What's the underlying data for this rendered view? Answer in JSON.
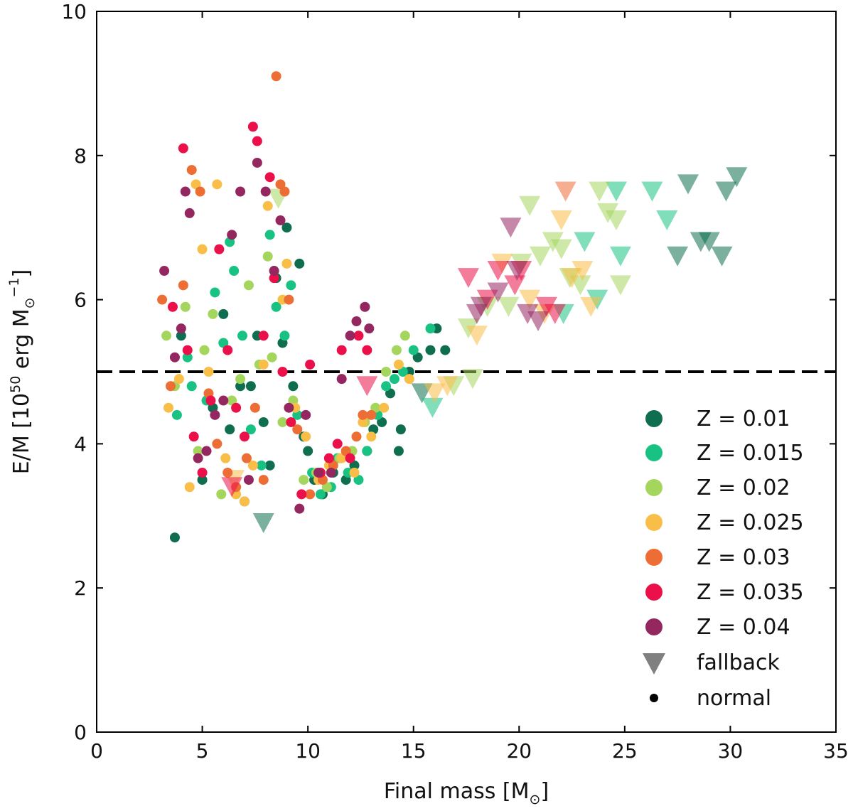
{
  "chart_data": {
    "type": "scatter",
    "title": "",
    "xlabel": {
      "main": "Final mass [M",
      "sub": "⊙",
      "close": "]"
    },
    "ylabel": {
      "pre": "E/M [10",
      "sup1": "50",
      "mid": " erg M",
      "sub": "⊙",
      "sup2": "−1",
      "close": "]"
    },
    "xlim": [
      0,
      35
    ],
    "ylim": [
      0,
      10
    ],
    "xticks": [
      0,
      5,
      10,
      15,
      20,
      25,
      30,
      35
    ],
    "yticks": [
      0,
      2,
      4,
      6,
      8,
      10
    ],
    "hline": {
      "y": 5.0,
      "style": "dashed",
      "color": "#000000"
    },
    "legend_position": "lower-right",
    "series": [
      {
        "name": "Z = 0.01",
        "color": "#0e6e4f",
        "normal": [
          [
            3.7,
            2.7
          ],
          [
            4.0,
            5.5
          ],
          [
            5.0,
            3.5
          ],
          [
            5.5,
            4.5
          ],
          [
            6.0,
            5.8
          ],
          [
            6.3,
            4.2
          ],
          [
            6.8,
            4.8
          ],
          [
            7.0,
            3.2
          ],
          [
            7.3,
            4.8
          ],
          [
            7.6,
            5.5
          ],
          [
            7.9,
            4.3
          ],
          [
            8.2,
            3.7
          ],
          [
            8.5,
            6.3
          ],
          [
            8.8,
            5.4
          ],
          [
            9.0,
            7.0
          ],
          [
            9.3,
            4.8
          ],
          [
            9.6,
            6.5
          ],
          [
            9.8,
            4.1
          ],
          [
            10.0,
            3.9
          ],
          [
            10.3,
            3.5
          ],
          [
            10.7,
            3.3
          ],
          [
            11.2,
            3.6
          ],
          [
            11.8,
            3.5
          ],
          [
            12.2,
            3.7
          ],
          [
            12.8,
            3.9
          ],
          [
            13.1,
            4.2
          ],
          [
            13.5,
            4.3
          ],
          [
            13.9,
            4.7
          ],
          [
            14.3,
            3.9
          ],
          [
            14.4,
            4.2
          ],
          [
            14.8,
            5.0
          ],
          [
            15.2,
            5.2
          ],
          [
            15.8,
            5.3
          ],
          [
            16.1,
            5.6
          ],
          [
            16.5,
            5.3
          ]
        ],
        "fallback": [
          [
            7.9,
            2.9
          ],
          [
            15.4,
            4.7
          ],
          [
            27.5,
            6.6
          ],
          [
            28.0,
            7.6
          ],
          [
            28.6,
            6.8
          ],
          [
            29.0,
            6.8
          ],
          [
            29.6,
            6.6
          ],
          [
            29.8,
            7.5
          ],
          [
            30.3,
            7.7
          ]
        ]
      },
      {
        "name": "Z = 0.015",
        "color": "#17c282",
        "normal": [
          [
            3.8,
            4.4
          ],
          [
            4.3,
            5.2
          ],
          [
            4.5,
            4.8
          ],
          [
            5.2,
            4.6
          ],
          [
            5.6,
            6.1
          ],
          [
            6.0,
            5.4
          ],
          [
            6.3,
            6.8
          ],
          [
            6.5,
            6.4
          ],
          [
            6.9,
            5.5
          ],
          [
            7.3,
            4.2
          ],
          [
            7.8,
            3.7
          ],
          [
            8.2,
            6.9
          ],
          [
            8.5,
            5.9
          ],
          [
            8.9,
            5.5
          ],
          [
            9.2,
            6.2
          ],
          [
            9.5,
            4.4
          ],
          [
            10.2,
            3.6
          ],
          [
            10.6,
            3.3
          ],
          [
            11.1,
            3.4
          ],
          [
            11.4,
            3.8
          ],
          [
            11.9,
            3.6
          ],
          [
            12.4,
            3.5
          ],
          [
            12.8,
            3.9
          ],
          [
            13.3,
            4.4
          ],
          [
            13.7,
            4.8
          ],
          [
            14.1,
            4.9
          ],
          [
            14.5,
            5.0
          ],
          [
            15.0,
            5.3
          ],
          [
            15.8,
            5.6
          ]
        ],
        "fallback": [
          [
            15.9,
            4.5
          ],
          [
            23.1,
            6.8
          ],
          [
            23.7,
            6.0
          ],
          [
            24.6,
            7.5
          ],
          [
            24.8,
            6.6
          ],
          [
            26.3,
            7.5
          ],
          [
            27.0,
            7.1
          ],
          [
            22.1,
            5.8
          ]
        ]
      },
      {
        "name": "Z = 0.02",
        "color": "#a4d65e",
        "normal": [
          [
            3.3,
            5.5
          ],
          [
            3.7,
            4.8
          ],
          [
            4.2,
            5.9
          ],
          [
            4.8,
            3.9
          ],
          [
            5.1,
            5.3
          ],
          [
            5.5,
            5.8
          ],
          [
            5.9,
            3.3
          ],
          [
            6.4,
            4.6
          ],
          [
            6.8,
            4.9
          ],
          [
            7.2,
            6.2
          ],
          [
            7.7,
            5.1
          ],
          [
            8.1,
            6.6
          ],
          [
            8.3,
            5.2
          ],
          [
            8.8,
            4.3
          ],
          [
            9.3,
            4.6
          ],
          [
            9.8,
            3.5
          ],
          [
            10.4,
            3.6
          ],
          [
            10.9,
            3.4
          ],
          [
            11.5,
            3.8
          ],
          [
            12.1,
            3.9
          ],
          [
            12.7,
            4.3
          ],
          [
            13.2,
            4.5
          ],
          [
            13.7,
            5.0
          ],
          [
            14.2,
            5.3
          ],
          [
            14.6,
            5.5
          ]
        ],
        "fallback": [
          [
            8.6,
            7.4
          ],
          [
            17.6,
            5.6
          ],
          [
            17.8,
            4.9
          ],
          [
            18.5,
            5.9
          ],
          [
            19.5,
            5.9
          ],
          [
            20.1,
            6.5
          ],
          [
            20.5,
            7.3
          ],
          [
            21.0,
            6.6
          ],
          [
            21.6,
            6.8
          ],
          [
            22.0,
            6.7
          ],
          [
            22.4,
            6.3
          ],
          [
            22.9,
            6.2
          ],
          [
            23.8,
            7.5
          ],
          [
            24.2,
            7.2
          ],
          [
            24.6,
            7.1
          ],
          [
            24.8,
            6.2
          ],
          [
            16.9,
            4.8
          ]
        ]
      },
      {
        "name": "Z = 0.025",
        "color": "#f9be47",
        "normal": [
          [
            3.4,
            4.5
          ],
          [
            3.9,
            4.9
          ],
          [
            4.4,
            3.4
          ],
          [
            4.7,
            7.6
          ],
          [
            5.0,
            6.7
          ],
          [
            5.3,
            5.0
          ],
          [
            5.7,
            7.6
          ],
          [
            6.1,
            3.8
          ],
          [
            6.6,
            3.3
          ],
          [
            7.0,
            3.2
          ],
          [
            7.4,
            3.7
          ],
          [
            7.9,
            5.1
          ],
          [
            8.1,
            7.3
          ],
          [
            8.4,
            6.4
          ],
          [
            8.8,
            6.0
          ],
          [
            9.0,
            6.5
          ],
          [
            9.4,
            4.5
          ],
          [
            9.9,
            4.1
          ],
          [
            10.5,
            3.5
          ],
          [
            11.0,
            3.7
          ],
          [
            11.6,
            3.8
          ],
          [
            12.2,
            3.6
          ],
          [
            12.6,
            4.3
          ],
          [
            13.0,
            4.1
          ],
          [
            13.6,
            4.5
          ],
          [
            14.3,
            5.1
          ],
          [
            14.8,
            4.9
          ]
        ],
        "fallback": [
          [
            6.5,
            3.5
          ],
          [
            16.0,
            4.7
          ],
          [
            16.6,
            4.8
          ],
          [
            18.0,
            5.5
          ],
          [
            19.2,
            6.5
          ],
          [
            20.5,
            6.0
          ],
          [
            21.2,
            5.8
          ],
          [
            22.0,
            7.1
          ],
          [
            22.5,
            6.3
          ],
          [
            23.0,
            6.4
          ],
          [
            23.4,
            5.9
          ]
        ]
      },
      {
        "name": "Z = 0.03",
        "color": "#ed6e35",
        "normal": [
          [
            3.1,
            6.0
          ],
          [
            3.5,
            4.8
          ],
          [
            4.1,
            6.2
          ],
          [
            4.5,
            7.8
          ],
          [
            4.9,
            7.5
          ],
          [
            5.3,
            4.7
          ],
          [
            5.7,
            4.0
          ],
          [
            6.2,
            3.6
          ],
          [
            6.6,
            3.4
          ],
          [
            7.1,
            3.8
          ],
          [
            7.5,
            4.5
          ],
          [
            7.9,
            3.5
          ],
          [
            8.5,
            9.1
          ],
          [
            8.7,
            7.6
          ],
          [
            8.9,
            7.5
          ],
          [
            9.1,
            6.0
          ],
          [
            9.5,
            4.2
          ],
          [
            10.1,
            3.3
          ],
          [
            10.7,
            3.5
          ],
          [
            11.2,
            3.7
          ],
          [
            11.8,
            3.9
          ],
          [
            12.3,
            4.1
          ],
          [
            12.6,
            4.4
          ],
          [
            13.0,
            4.4
          ]
        ],
        "fallback": [
          [
            22.2,
            7.5
          ]
        ]
      },
      {
        "name": "Z = 0.035",
        "color": "#eb1049",
        "normal": [
          [
            3.6,
            5.9
          ],
          [
            4.1,
            8.1
          ],
          [
            4.3,
            5.3
          ],
          [
            4.6,
            4.1
          ],
          [
            5.0,
            3.6
          ],
          [
            5.4,
            4.6
          ],
          [
            5.8,
            6.7
          ],
          [
            6.2,
            5.3
          ],
          [
            6.6,
            4.5
          ],
          [
            7.0,
            4.1
          ],
          [
            7.4,
            8.4
          ],
          [
            7.6,
            8.2
          ],
          [
            7.9,
            5.5
          ],
          [
            8.2,
            7.7
          ],
          [
            8.4,
            6.3
          ],
          [
            8.8,
            5.0
          ],
          [
            9.2,
            4.3
          ],
          [
            9.7,
            3.3
          ],
          [
            10.1,
            5.1
          ],
          [
            10.6,
            3.6
          ],
          [
            11.0,
            3.8
          ],
          [
            11.4,
            4.0
          ],
          [
            11.6,
            5.3
          ],
          [
            12.0,
            3.8
          ],
          [
            12.4,
            5.5
          ],
          [
            12.8,
            5.3
          ]
        ],
        "fallback": [
          [
            6.4,
            3.4
          ],
          [
            12.8,
            4.8
          ],
          [
            17.6,
            6.3
          ],
          [
            18.5,
            6.0
          ],
          [
            19.0,
            6.4
          ],
          [
            19.8,
            6.2
          ],
          [
            20.1,
            6.4
          ],
          [
            21.3,
            5.9
          ],
          [
            21.7,
            5.8
          ]
        ]
      },
      {
        "name": "Z = 0.04",
        "color": "#952760",
        "normal": [
          [
            3.2,
            6.4
          ],
          [
            3.7,
            5.2
          ],
          [
            4.0,
            5.6
          ],
          [
            4.2,
            7.5
          ],
          [
            4.4,
            7.2
          ],
          [
            4.8,
            3.8
          ],
          [
            5.2,
            3.9
          ],
          [
            5.6,
            4.4
          ],
          [
            6.0,
            4.6
          ],
          [
            6.4,
            6.9
          ],
          [
            6.8,
            7.5
          ],
          [
            7.2,
            3.5
          ],
          [
            7.6,
            7.9
          ],
          [
            8.0,
            7.5
          ],
          [
            8.4,
            6.4
          ],
          [
            8.7,
            7.1
          ],
          [
            9.1,
            4.5
          ],
          [
            9.6,
            3.1
          ],
          [
            9.9,
            4.4
          ],
          [
            10.5,
            3.6
          ],
          [
            11.1,
            3.6
          ],
          [
            11.6,
            4.9
          ],
          [
            12.0,
            5.5
          ],
          [
            12.3,
            5.7
          ],
          [
            12.7,
            5.9
          ],
          [
            12.9,
            5.6
          ]
        ],
        "fallback": [
          [
            18.2,
            5.9
          ],
          [
            19.0,
            6.1
          ],
          [
            19.6,
            7.0
          ],
          [
            19.9,
            6.4
          ],
          [
            20.4,
            5.8
          ],
          [
            20.9,
            5.7
          ],
          [
            18.0,
            5.8
          ]
        ]
      }
    ]
  },
  "legend": {
    "entries": [
      "Z = 0.01",
      "Z = 0.015",
      "Z = 0.02",
      "Z = 0.025",
      "Z = 0.03",
      "Z = 0.035",
      "Z = 0.04"
    ],
    "fallback_label": "fallback",
    "normal_label": "normal",
    "fallback_marker_color": "#808080",
    "normal_marker_color": "#000000"
  }
}
